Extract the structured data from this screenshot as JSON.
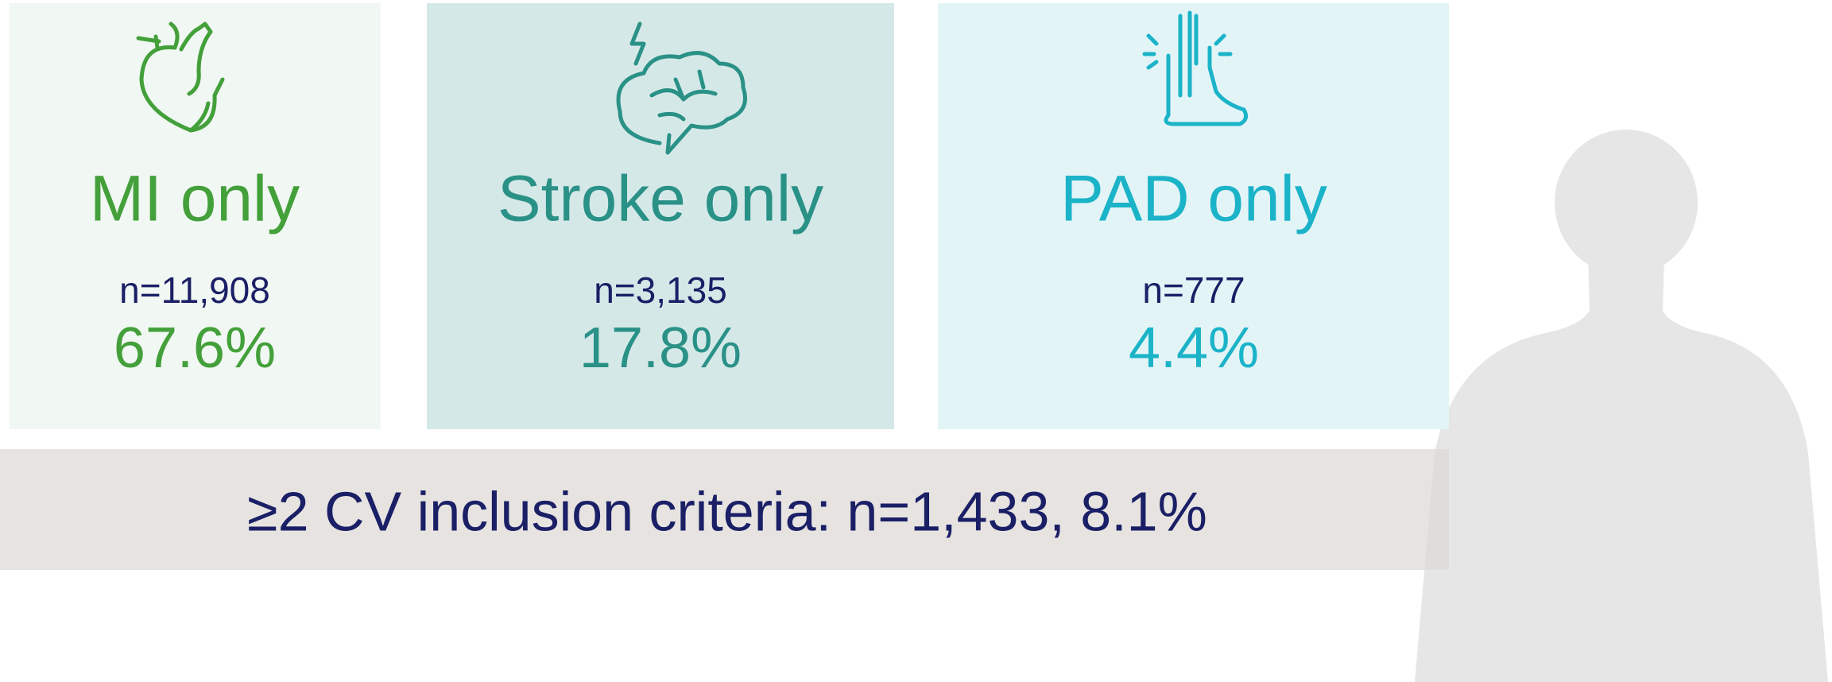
{
  "panels": [
    {
      "title": "MI only",
      "n": "n=11,908",
      "percent": "67.6%"
    },
    {
      "title": "Stroke only",
      "n": "n=3,135",
      "percent": "17.8%"
    },
    {
      "title": "PAD only",
      "n": "n=777",
      "percent": "4.4%"
    }
  ],
  "footer": "≥2 CV inclusion criteria: n=1,433, 8.1%"
}
